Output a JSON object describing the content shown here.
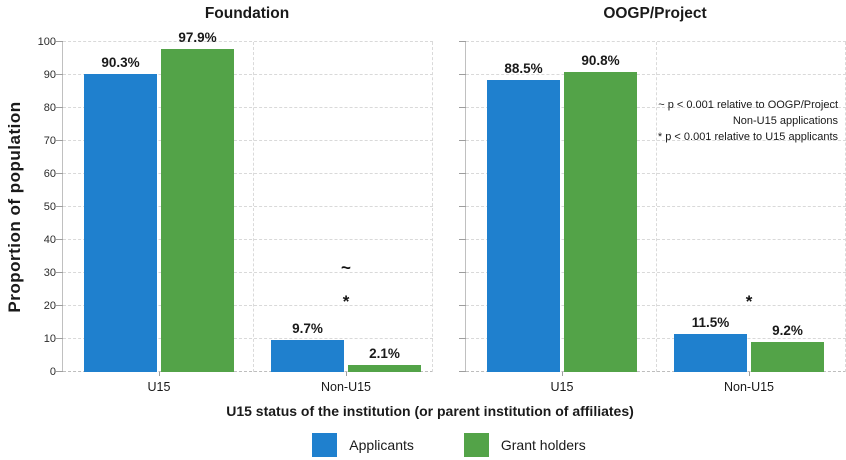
{
  "chart_data": {
    "type": "bar",
    "categories": [
      "U15",
      "Non-U15"
    ],
    "series_names": [
      "Applicants",
      "Grant holders"
    ],
    "series_colors": [
      "#1F80CE",
      "#53A348"
    ],
    "panels": [
      {
        "title": "Foundation",
        "series": [
          {
            "name": "Applicants",
            "values": [
              90.3,
              9.7
            ],
            "labels": [
              "90.3%",
              "9.7%"
            ]
          },
          {
            "name": "Grant holders",
            "values": [
              97.9,
              2.1
            ],
            "labels": [
              "97.9%",
              "2.1%"
            ]
          }
        ],
        "sig_marks": [
          {
            "category_index": 1,
            "marks": [
              "~",
              "*"
            ]
          }
        ]
      },
      {
        "title": "OOGP/Project",
        "series": [
          {
            "name": "Applicants",
            "values": [
              88.5,
              11.5
            ],
            "labels": [
              "88.5%",
              "11.5%"
            ]
          },
          {
            "name": "Grant holders",
            "values": [
              90.8,
              9.2
            ],
            "labels": [
              "90.8%",
              "9.2%"
            ]
          }
        ],
        "sig_marks": [
          {
            "category_index": 1,
            "marks": [
              "*"
            ]
          }
        ]
      }
    ],
    "xlabel": "U15 status of the institution (or parent institution of affiliates)",
    "ylabel": "Proportion of population",
    "ylim": [
      0,
      100
    ],
    "ytick_step": 10,
    "grid": "horizontal-dashed",
    "legend_position": "bottom"
  },
  "legend": {
    "items": [
      {
        "label": "Applicants",
        "color": "#1F80CE"
      },
      {
        "label": "Grant holders",
        "color": "#53A348"
      }
    ]
  },
  "note": {
    "lines": [
      "~ p < 0.001 relative to OOGP/Project",
      "Non-U15 applications",
      "* p < 0.001 relative to U15 applicants"
    ]
  },
  "colors": {
    "applicants_blue": "#1F80CE",
    "grant_holders_green": "#53A348",
    "gridline": "#D9D9D9",
    "axis_line": "#C0C0C0",
    "text": "#1A1A1A"
  }
}
